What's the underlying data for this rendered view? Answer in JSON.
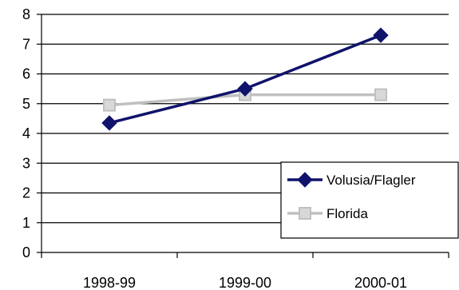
{
  "chart_data": {
    "type": "line",
    "categories": [
      "1998-99",
      "1999-00",
      "2000-01"
    ],
    "ylim": [
      0,
      8
    ],
    "yticks": [
      0,
      1,
      2,
      3,
      4,
      5,
      6,
      7,
      8
    ],
    "grid": "horizontal",
    "legend_position": "bottom-right",
    "series": [
      {
        "name": "Volusia/Flagler",
        "values": [
          4.35,
          5.5,
          7.3
        ],
        "color": "#10136b",
        "marker": "diamond"
      },
      {
        "name": "Florida",
        "values": [
          4.95,
          5.3,
          5.3
        ],
        "color": "#c0c0c0",
        "marker": "square"
      }
    ]
  }
}
